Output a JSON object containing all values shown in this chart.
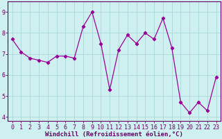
{
  "x": [
    0,
    1,
    2,
    3,
    4,
    5,
    6,
    7,
    8,
    9,
    10,
    11,
    12,
    13,
    14,
    15,
    16,
    17,
    18,
    19,
    20,
    21,
    22,
    23
  ],
  "y": [
    7.7,
    7.1,
    6.8,
    6.7,
    6.6,
    6.9,
    6.9,
    6.8,
    8.3,
    9.0,
    7.5,
    5.3,
    7.2,
    7.9,
    7.5,
    8.0,
    7.7,
    8.7,
    7.3,
    4.7,
    4.2,
    4.7,
    4.3,
    5.9
  ],
  "line_color": "#990099",
  "marker": "D",
  "marker_size": 2.2,
  "bg_color": "#cff0f0",
  "grid_color": "#aad8d8",
  "xlabel": "Windchill (Refroidissement éolien,°C)",
  "xlim": [
    -0.5,
    23.5
  ],
  "ylim": [
    3.8,
    9.5
  ],
  "xticks": [
    0,
    1,
    2,
    3,
    4,
    5,
    6,
    7,
    8,
    9,
    10,
    11,
    12,
    13,
    14,
    15,
    16,
    17,
    18,
    19,
    20,
    21,
    22,
    23
  ],
  "yticks": [
    4,
    5,
    6,
    7,
    8,
    9
  ],
  "xlabel_fontsize": 6.5,
  "tick_fontsize": 6.0,
  "label_color": "#660066",
  "spine_color": "#660066",
  "line_width": 0.9
}
